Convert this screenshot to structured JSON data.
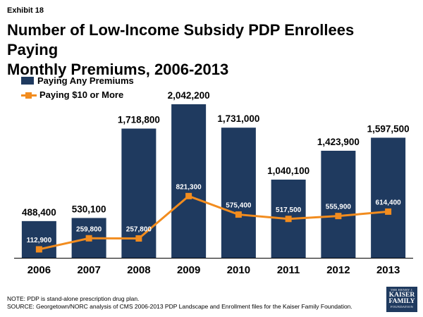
{
  "exhibit": "Exhibit 18",
  "title_line1": "Number of Low-Income Subsidy PDP Enrollees Paying",
  "title_line2": "Monthly Premiums, 2006-2013",
  "colors": {
    "bar": "#1f3a5f",
    "line": "#f28c1e"
  },
  "chart_data": {
    "type": "bar",
    "categories": [
      "2006",
      "2007",
      "2008",
      "2009",
      "2010",
      "2011",
      "2012",
      "2013"
    ],
    "series": [
      {
        "name": "Paying Any Premiums",
        "type": "bar",
        "values": [
          488400,
          530100,
          1718800,
          2042200,
          1731000,
          1040100,
          1423900,
          1597500
        ],
        "labels": [
          "488,400",
          "530,100",
          "1,718,800",
          "2,042,200",
          "1,731,000",
          "1,040,100",
          "1,423,900",
          "1,597,500"
        ]
      },
      {
        "name": "Paying $10 or More",
        "type": "line",
        "values": [
          112900,
          259800,
          257800,
          821300,
          575400,
          517500,
          555900,
          614400
        ],
        "labels": [
          "112,900",
          "259,800",
          "257,800",
          "821,300",
          "575,400",
          "517,500",
          "555,900",
          "614,400"
        ]
      }
    ],
    "ylim": [
      0,
      2042200
    ],
    "legend": "top-left",
    "grid": false
  },
  "note": "NOTE: PDP is stand-alone prescription drug plan.",
  "source": "SOURCE: Georgetown/NORC analysis of CMS 2006-2013 PDP Landscape and Enrollment files for the Kaiser Family Foundation.",
  "logo": {
    "line1": "THE HENRY J.",
    "line2": "KAISER",
    "line3": "FAMILY",
    "line4": "FOUNDATION"
  }
}
